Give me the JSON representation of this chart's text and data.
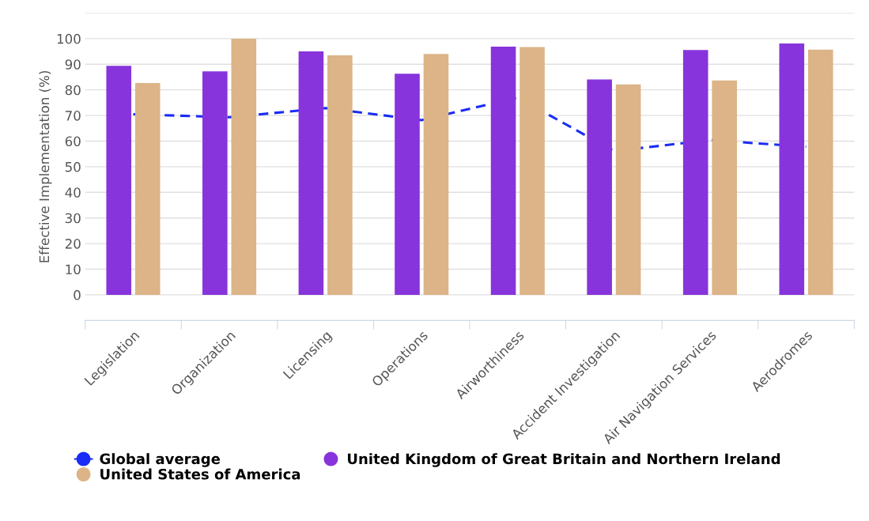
{
  "chart_data": {
    "type": "bar",
    "ylabel": "Effective Implementation (%)",
    "categories": [
      "Legislation",
      "Organization",
      "Licensing",
      "Operations",
      "Airworthiness",
      "Accident Investigation",
      "Air Navigation Services",
      "Aerodromes"
    ],
    "series": [
      {
        "name": "Global average",
        "type": "line",
        "color": "#1a2cf5",
        "line_style": "dashed",
        "values": [
          70.5,
          69.3,
          72.9,
          68.2,
          77.0,
          56.1,
          60.4,
          57.8
        ]
      },
      {
        "name": "United Kingdom of Great Britain and Northern Ireland",
        "color": "#8834dc",
        "values": [
          89.4,
          87.2,
          95.0,
          86.3,
          96.9,
          84.1,
          95.6,
          98.1
        ]
      },
      {
        "name": "United States of America",
        "color": "#dcb487",
        "values": [
          82.7,
          100,
          93.5,
          94.0,
          96.7,
          82.1,
          83.7,
          95.7
        ]
      }
    ],
    "ylim": [
      -10,
      110
    ],
    "yticks": [
      0,
      10,
      20,
      30,
      40,
      50,
      60,
      70,
      80,
      90,
      100,
      {
        "value": 110,
        "label": null
      }
    ],
    "grid": "y",
    "legend": "bottom"
  }
}
